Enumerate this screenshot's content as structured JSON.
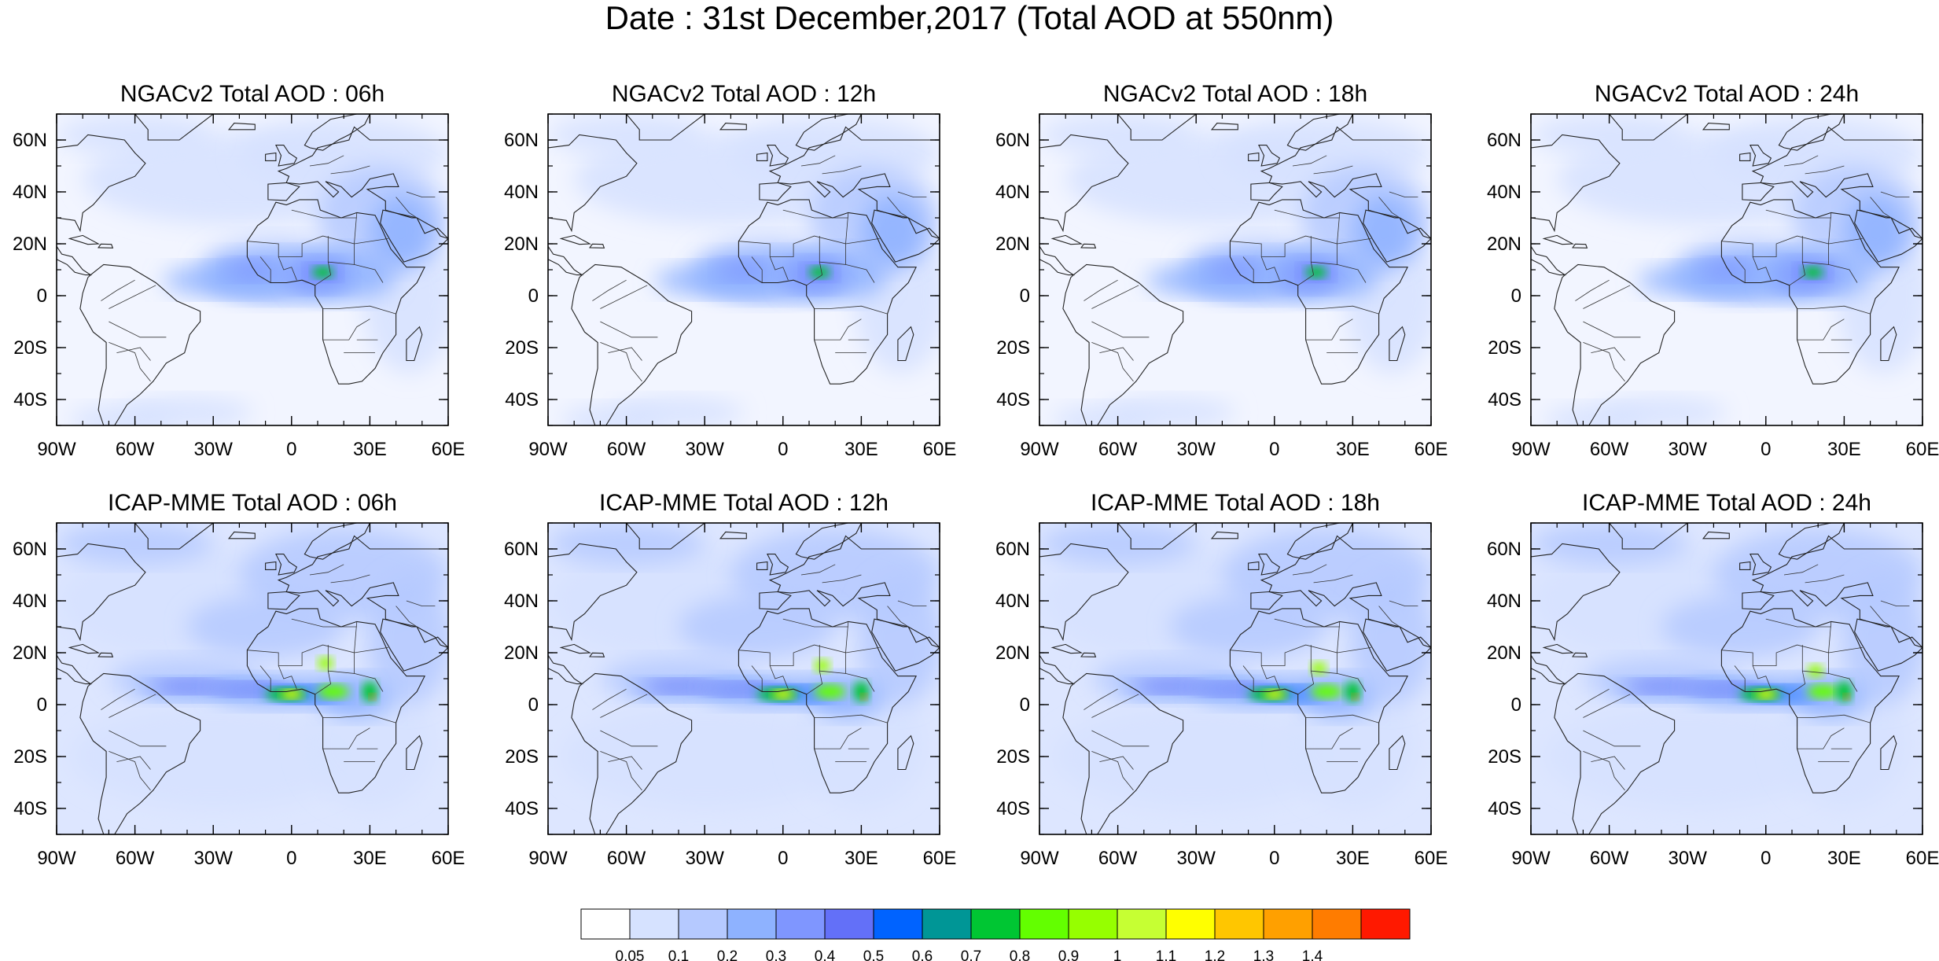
{
  "figure": {
    "title": "Date : 31st December,2017 (Total AOD at 550nm)"
  },
  "panels": [
    {
      "title": "NGACv2 Total AOD : 06h",
      "model": "NGACv2",
      "hour": "06h"
    },
    {
      "title": "NGACv2 Total AOD : 12h",
      "model": "NGACv2",
      "hour": "12h"
    },
    {
      "title": "NGACv2 Total AOD : 18h",
      "model": "NGACv2",
      "hour": "18h"
    },
    {
      "title": "NGACv2 Total AOD : 24h",
      "model": "NGACv2",
      "hour": "24h"
    },
    {
      "title": "ICAP-MME Total AOD : 06h",
      "model": "ICAP-MME",
      "hour": "06h"
    },
    {
      "title": "ICAP-MME Total AOD : 12h",
      "model": "ICAP-MME",
      "hour": "12h"
    },
    {
      "title": "ICAP-MME Total AOD : 18h",
      "model": "ICAP-MME",
      "hour": "18h"
    },
    {
      "title": "ICAP-MME Total AOD : 24h",
      "model": "ICAP-MME",
      "hour": "24h"
    }
  ],
  "axes": {
    "lon_range": [
      -90,
      60
    ],
    "lat_range": [
      -50,
      70
    ],
    "x_ticks": [
      {
        "value": -90,
        "label": "90W"
      },
      {
        "value": -60,
        "label": "60W"
      },
      {
        "value": -30,
        "label": "30W"
      },
      {
        "value": 0,
        "label": "0"
      },
      {
        "value": 30,
        "label": "30E"
      },
      {
        "value": 60,
        "label": "60E"
      }
    ],
    "y_ticks": [
      {
        "value": 60,
        "label": "60N"
      },
      {
        "value": 40,
        "label": "40N"
      },
      {
        "value": 20,
        "label": "20N"
      },
      {
        "value": 0,
        "label": "0"
      },
      {
        "value": -20,
        "label": "20S"
      },
      {
        "value": -40,
        "label": "40S"
      }
    ]
  },
  "colorbar": {
    "colors": [
      "#ffffff",
      "#d6e2ff",
      "#b5c9ff",
      "#8eb2ff",
      "#7f96ff",
      "#6370f8",
      "#0063ff",
      "#009696",
      "#00c633",
      "#63ff00",
      "#96ff00",
      "#c6ff33",
      "#ffff00",
      "#ffc600",
      "#ffa000",
      "#ff7c00",
      "#ff1900"
    ],
    "labels": [
      "0.05",
      "0.1",
      "0.2",
      "0.3",
      "0.4",
      "0.5",
      "0.6",
      "0.7",
      "0.8",
      "0.9",
      "1",
      "1.1",
      "1.2",
      "1.3",
      "1.4"
    ]
  }
}
